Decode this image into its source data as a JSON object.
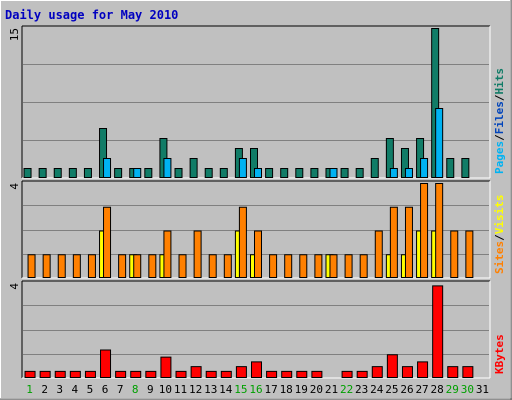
{
  "chart_data": {
    "type": "bar",
    "title": "Daily usage for May 2010",
    "categories": [
      "1",
      "2",
      "3",
      "4",
      "5",
      "6",
      "7",
      "8",
      "9",
      "10",
      "11",
      "12",
      "13",
      "14",
      "15",
      "16",
      "17",
      "18",
      "19",
      "20",
      "21",
      "22",
      "23",
      "24",
      "25",
      "26",
      "27",
      "28",
      "29",
      "30",
      "31"
    ],
    "weekend_days": [
      "1",
      "8",
      "15",
      "16",
      "22",
      "29",
      "30"
    ],
    "panels": [
      {
        "id": "hits",
        "ymax_label": "15",
        "ylim": [
          0,
          15
        ],
        "legend": [
          {
            "text": "Pages",
            "color": "#00b2f2"
          },
          {
            "text": "/",
            "color": "#000000"
          },
          {
            "text": "Files",
            "color": "#0044bb"
          },
          {
            "text": "/",
            "color": "#000000"
          },
          {
            "text": "Hits",
            "color": "#117c67"
          }
        ],
        "series": [
          {
            "name": "Hits",
            "color": "#117c67",
            "values": [
              1,
              1,
              1,
              1,
              1,
              5,
              1,
              1,
              1,
              4,
              1,
              2,
              1,
              1,
              3,
              3,
              1,
              1,
              1,
              1,
              1,
              1,
              1,
              2,
              4,
              3,
              4,
              15,
              2,
              2,
              0
            ]
          },
          {
            "name": "Pages",
            "color": "#00b2f2",
            "values": [
              0,
              0,
              0,
              0,
              0,
              2,
              0,
              1,
              0,
              2,
              0,
              0,
              0,
              0,
              2,
              1,
              0,
              0,
              0,
              0,
              1,
              0,
              0,
              0,
              1,
              1,
              2,
              7,
              0,
              0,
              0
            ]
          }
        ]
      },
      {
        "id": "visits",
        "ymax_label": "4",
        "ylim": [
          0,
          4
        ],
        "legend": [
          {
            "text": "Sites",
            "color": "#ff8000"
          },
          {
            "text": "/",
            "color": "#000000"
          },
          {
            "text": "Visits",
            "color": "#ffff00"
          }
        ],
        "series": [
          {
            "name": "Visits",
            "color": "#ffff00",
            "values": [
              0,
              0,
              0,
              0,
              0,
              2,
              0,
              1,
              0,
              1,
              0,
              0,
              0,
              0,
              2,
              1,
              0,
              0,
              0,
              0,
              1,
              0,
              0,
              0,
              1,
              1,
              2,
              2,
              0,
              0,
              0
            ]
          },
          {
            "name": "Sites",
            "color": "#ff8000",
            "values": [
              1,
              1,
              1,
              1,
              1,
              3,
              1,
              1,
              1,
              2,
              1,
              2,
              1,
              1,
              3,
              2,
              1,
              1,
              1,
              1,
              1,
              1,
              1,
              2,
              3,
              3,
              4,
              4,
              2,
              2,
              0
            ]
          }
        ]
      },
      {
        "id": "kbytes",
        "ymax_label": "4",
        "ylim": [
          0,
          4
        ],
        "legend": [
          {
            "text": "KBytes",
            "color": "#ff0000"
          }
        ],
        "series": [
          {
            "name": "KBytes",
            "color": "#ff0000",
            "values": [
              0.3,
              0.3,
              0.3,
              0.3,
              0.3,
              1.2,
              0.3,
              0.3,
              0.3,
              0.9,
              0.3,
              0.5,
              0.3,
              0.3,
              0.5,
              0.7,
              0.3,
              0.3,
              0.3,
              0.3,
              0,
              0.3,
              0.3,
              0.5,
              1.0,
              0.5,
              0.7,
              3.9,
              0.5,
              0.5,
              0
            ]
          }
        ]
      }
    ]
  },
  "colors": {
    "background": "#c0c0c0",
    "title": "#0000c0",
    "weekday": "#000000",
    "weekend": "#00a000",
    "gridline": "#808080"
  }
}
